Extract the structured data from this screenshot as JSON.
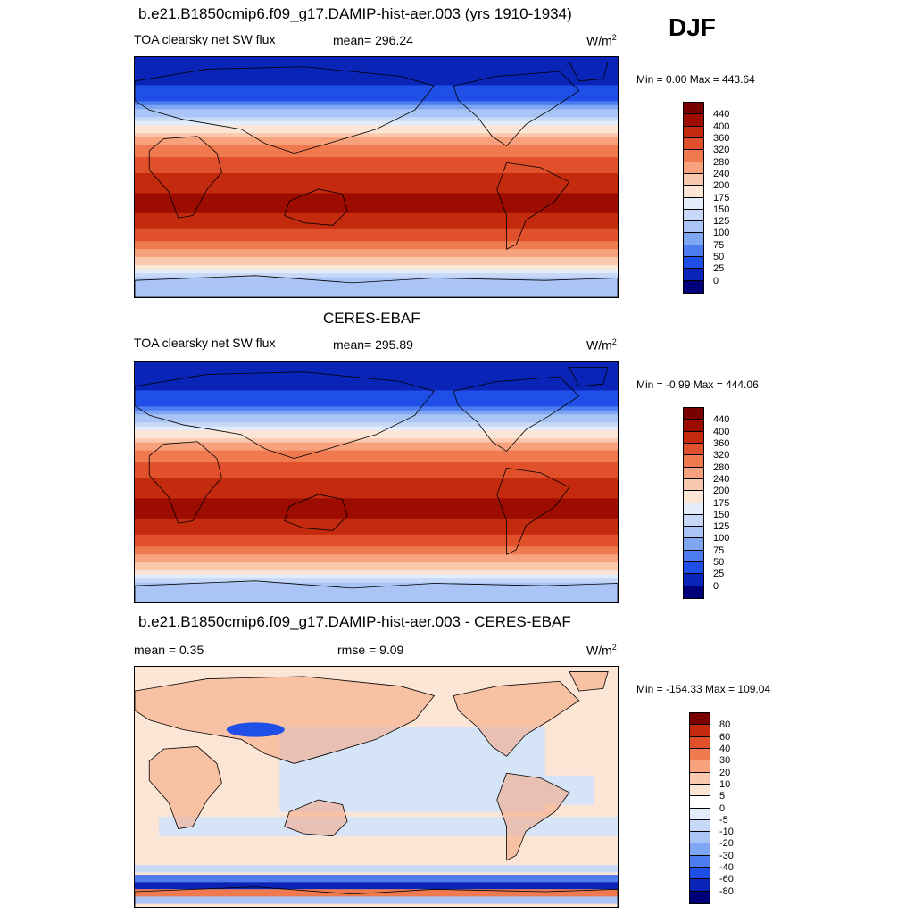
{
  "season": "DJF",
  "panels": [
    {
      "title": "b.e21.B1850cmip6.f09_g17.DAMIP-hist-aer.003 (yrs 1910-1934)",
      "left": "TOA clearsky net SW flux",
      "center": "mean= 296.24",
      "units": "W/m",
      "units_sup": "2",
      "minmax": "Min =   0.00 Max = 443.64"
    },
    {
      "title": "CERES-EBAF",
      "left": "TOA clearsky net SW flux",
      "center": "mean= 295.89",
      "units": "W/m",
      "units_sup": "2",
      "minmax": "Min =  -0.99 Max = 444.06"
    },
    {
      "title": "b.e21.B1850cmip6.f09_g17.DAMIP-hist-aer.003 - CERES-EBAF",
      "left": "mean =   0.35",
      "center": "rmse =   9.09",
      "units": "W/m",
      "units_sup": "2",
      "minmax": "Min = -154.33 Max = 109.04"
    }
  ],
  "chart_data": [
    {
      "type": "heatmap",
      "title": "b.e21.B1850cmip6.f09_g17.DAMIP-hist-aer.003 (yrs 1910-1934)",
      "variable": "TOA clearsky net SW flux",
      "units": "W/m2",
      "mean": 296.24,
      "min": 0.0,
      "max": 443.64,
      "colorbar_levels": [
        0,
        25,
        50,
        75,
        100,
        125,
        150,
        175,
        200,
        240,
        280,
        320,
        360,
        400,
        440
      ],
      "colorbar_colors": [
        "#00007a",
        "#0a24b8",
        "#1f4fe6",
        "#4d7cf0",
        "#7fa6f2",
        "#a9c4f5",
        "#c7d9f7",
        "#e2ecfa",
        "#fbe6d6",
        "#fac8ad",
        "#f7a27c",
        "#f07a4f",
        "#e0502a",
        "#c42a0e",
        "#9c0c00",
        "#7a0000"
      ],
      "zonal_profile": {
        "lat": [
          80,
          60,
          40,
          20,
          0,
          -20,
          -40,
          -60,
          -80
        ],
        "value": [
          0,
          40,
          160,
          300,
          370,
          420,
          360,
          240,
          100
        ]
      }
    },
    {
      "type": "heatmap",
      "title": "CERES-EBAF",
      "variable": "TOA clearsky net SW flux",
      "units": "W/m2",
      "mean": 295.89,
      "min": -0.99,
      "max": 444.06,
      "colorbar_levels": [
        0,
        25,
        50,
        75,
        100,
        125,
        150,
        175,
        200,
        240,
        280,
        320,
        360,
        400,
        440
      ],
      "colorbar_colors": [
        "#00007a",
        "#0a24b8",
        "#1f4fe6",
        "#4d7cf0",
        "#7fa6f2",
        "#a9c4f5",
        "#c7d9f7",
        "#e2ecfa",
        "#fbe6d6",
        "#fac8ad",
        "#f7a27c",
        "#f07a4f",
        "#e0502a",
        "#c42a0e",
        "#9c0c00",
        "#7a0000"
      ],
      "zonal_profile": {
        "lat": [
          80,
          60,
          40,
          20,
          0,
          -20,
          -40,
          -60,
          -80
        ],
        "value": [
          0,
          40,
          160,
          300,
          370,
          420,
          360,
          240,
          100
        ]
      }
    },
    {
      "type": "heatmap",
      "title": "b.e21.B1850cmip6.f09_g17.DAMIP-hist-aer.003 - CERES-EBAF",
      "units": "W/m2",
      "mean": 0.35,
      "rmse": 9.09,
      "min": -154.33,
      "max": 109.04,
      "colorbar_levels": [
        -80,
        -60,
        -40,
        -30,
        -20,
        -10,
        -5,
        0,
        5,
        10,
        20,
        30,
        40,
        60,
        80
      ],
      "colorbar_colors": [
        "#00007a",
        "#0a24b8",
        "#1f4fe6",
        "#4d7cf0",
        "#7fa6f2",
        "#a9c4f5",
        "#c7d9f7",
        "#e2ecfa",
        "#ffffff",
        "#fbe6d6",
        "#fac8ad",
        "#f7a27c",
        "#f07a4f",
        "#e0502a",
        "#c42a0e",
        "#7a0000"
      ]
    }
  ]
}
